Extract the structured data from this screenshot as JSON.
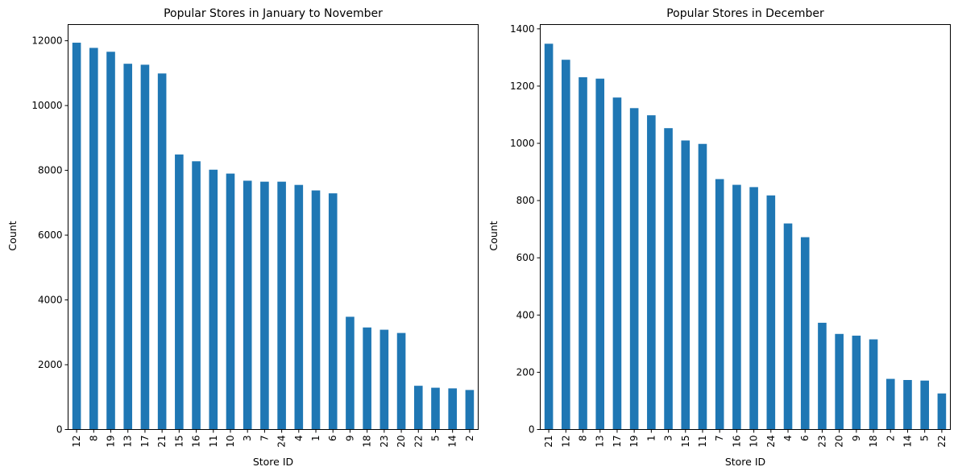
{
  "chart_data": [
    {
      "type": "bar",
      "title": "Popular Stores in January to November",
      "xlabel": "Store ID",
      "ylabel": "Count",
      "ylim": [
        0,
        12500
      ],
      "yticks": [
        0,
        2000,
        4000,
        6000,
        8000,
        10000,
        12000
      ],
      "categories": [
        "12",
        "8",
        "19",
        "13",
        "17",
        "21",
        "15",
        "16",
        "11",
        "10",
        "3",
        "7",
        "24",
        "4",
        "1",
        "6",
        "9",
        "18",
        "23",
        "20",
        "22",
        "5",
        "14",
        "2"
      ],
      "values": [
        11940,
        11780,
        11660,
        11290,
        11260,
        10990,
        8490,
        8280,
        8020,
        7900,
        7680,
        7650,
        7650,
        7550,
        7380,
        7290,
        3480,
        3150,
        3080,
        2980,
        1350,
        1290,
        1270,
        1220
      ],
      "color": "#1f77b4",
      "grid": false
    },
    {
      "type": "bar",
      "title": "Popular Stores in December",
      "xlabel": "Store ID",
      "ylabel": "Count",
      "ylim": [
        0,
        1415
      ],
      "yticks": [
        0,
        200,
        400,
        600,
        800,
        1000,
        1200,
        1400
      ],
      "categories": [
        "21",
        "12",
        "8",
        "13",
        "17",
        "19",
        "1",
        "3",
        "15",
        "11",
        "7",
        "16",
        "10",
        "24",
        "4",
        "6",
        "23",
        "20",
        "9",
        "18",
        "2",
        "14",
        "5",
        "22"
      ],
      "values": [
        1348,
        1292,
        1231,
        1226,
        1160,
        1123,
        1098,
        1053,
        1010,
        998,
        875,
        855,
        847,
        818,
        720,
        672,
        373,
        334,
        328,
        315,
        177,
        173,
        171,
        126
      ],
      "color": "#1f77b4",
      "grid": false
    }
  ]
}
